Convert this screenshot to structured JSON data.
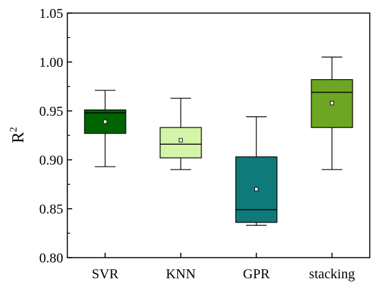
{
  "chart_data": {
    "type": "box",
    "ylabel": "R",
    "ylabel_superscript": "2",
    "ylim": [
      0.8,
      1.05
    ],
    "yticks": [
      "0.80",
      "0.85",
      "0.90",
      "0.95",
      "1.00",
      "1.05"
    ],
    "ytick_values": [
      0.8,
      0.85,
      0.9,
      0.95,
      1.0,
      1.05
    ],
    "categories": [
      "SVR",
      "KNN",
      "GPR",
      "stacking"
    ],
    "boxes": [
      {
        "category": "SVR",
        "whisker_low": 0.893,
        "q1": 0.927,
        "median": 0.948,
        "q3": 0.951,
        "whisker_high": 0.971,
        "mean": 0.939,
        "color": "#006400"
      },
      {
        "category": "KNN",
        "whisker_low": 0.89,
        "q1": 0.902,
        "median": 0.916,
        "q3": 0.933,
        "whisker_high": 0.963,
        "mean": 0.92,
        "color": "#d4f5a8"
      },
      {
        "category": "GPR",
        "whisker_low": 0.833,
        "q1": 0.836,
        "median": 0.849,
        "q3": 0.903,
        "whisker_high": 0.944,
        "mean": 0.87,
        "color": "#0e7a7a"
      },
      {
        "category": "stacking",
        "whisker_low": 0.89,
        "q1": 0.933,
        "median": 0.969,
        "q3": 0.982,
        "whisker_high": 1.005,
        "mean": 0.958,
        "color": "#6ca622"
      }
    ],
    "grid": false,
    "legend": "none"
  }
}
